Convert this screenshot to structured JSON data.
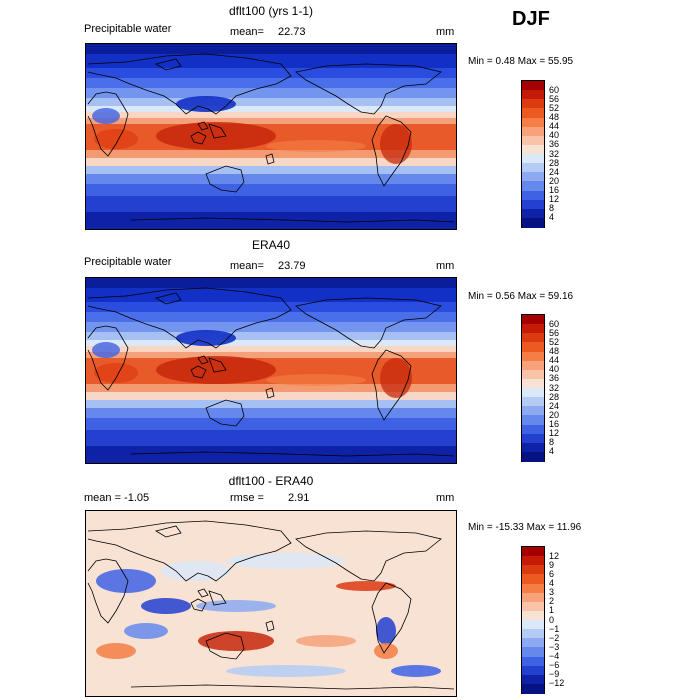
{
  "season": "DJF",
  "panels": [
    {
      "title": "dflt100 (yrs 1-1)",
      "left_label": "Precipitable water",
      "stat_label": "mean=",
      "stat_value": "22.73",
      "unit": "mm",
      "minmax": "Min =    0.48 Max =   55.95",
      "colorbar_levels": [
        "60",
        "56",
        "52",
        "48",
        "44",
        "40",
        "36",
        "32",
        "28",
        "24",
        "20",
        "16",
        "12",
        "8",
        "4"
      ],
      "colorbar_colors": [
        "#a50000",
        "#c51a06",
        "#dc3a10",
        "#ec5a22",
        "#f47e45",
        "#f7a27a",
        "#f8c3a7",
        "#f7e2d3",
        "#dbe8f7",
        "#b4ccf4",
        "#8ca9f1",
        "#6688ec",
        "#3f62e5",
        "#2340cf",
        "#0d22a7",
        "#051282"
      ],
      "style": "abs"
    },
    {
      "title": "ERA40",
      "left_label": "Precipitable water",
      "stat_label": "mean=",
      "stat_value": "23.79",
      "unit": "mm",
      "minmax": "Min =    0.56 Max =   59.16",
      "colorbar_levels": [
        "60",
        "56",
        "52",
        "48",
        "44",
        "40",
        "36",
        "32",
        "28",
        "24",
        "20",
        "16",
        "12",
        "8",
        "4"
      ],
      "colorbar_colors": [
        "#a50000",
        "#c51a06",
        "#dc3a10",
        "#ec5a22",
        "#f47e45",
        "#f7a27a",
        "#f8c3a7",
        "#f7e2d3",
        "#dbe8f7",
        "#b4ccf4",
        "#8ca9f1",
        "#6688ec",
        "#3f62e5",
        "#2340cf",
        "#0d22a7",
        "#051282"
      ],
      "style": "abs"
    },
    {
      "title": "dflt100 - ERA40",
      "left_label": "mean =   -1.05",
      "stat_label": "rmse =",
      "stat_value": "2.91",
      "unit": "mm",
      "minmax": "Min = -15.33 Max =   11.96",
      "colorbar_levels": [
        "12",
        "9",
        "6",
        "4",
        "3",
        "2",
        "1",
        "0",
        "−1",
        "−2",
        "−3",
        "−4",
        "−6",
        "−9",
        "−12"
      ],
      "colorbar_colors": [
        "#a50000",
        "#c51a06",
        "#dc3a10",
        "#ec5a22",
        "#f47e45",
        "#f7a27a",
        "#f8c3a7",
        "#f7e2d3",
        "#dbe8f7",
        "#b4ccf4",
        "#8ca9f1",
        "#6688ec",
        "#3f62e5",
        "#2340cf",
        "#0d22a7",
        "#051282"
      ],
      "style": "diff"
    }
  ]
}
